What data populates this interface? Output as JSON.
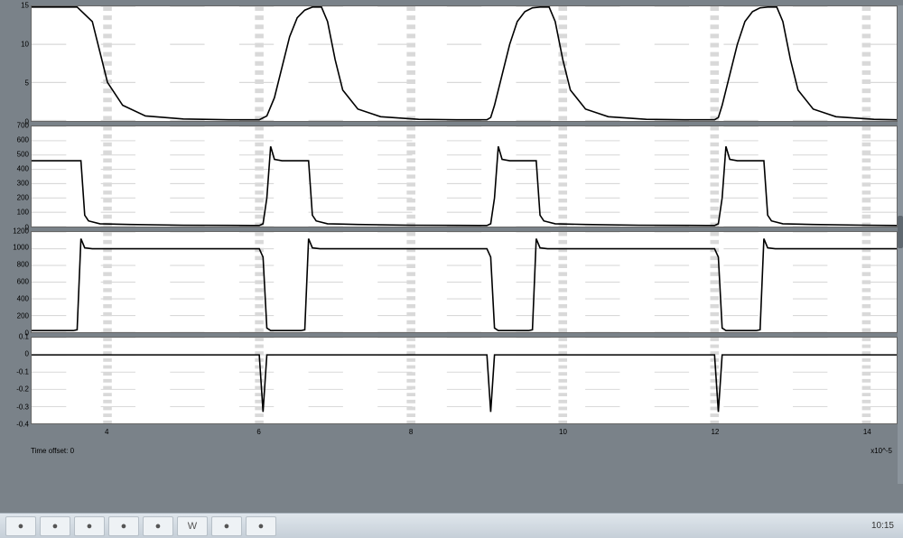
{
  "scope": {
    "background_color": "#7a8289",
    "plot_bg": "#ffffff",
    "grid_color": "#d9d9d9",
    "trace_color": "#000000",
    "trace_width": 1.6,
    "xlim": [
      3,
      14.4
    ],
    "xtick_positions": [
      4,
      6,
      8,
      10,
      12,
      14
    ],
    "xtick_labels": [
      "4",
      "6",
      "8",
      "10",
      "12",
      "14"
    ],
    "x_exponent_label": "x10^-5",
    "time_offset_label": "Time offset: 0",
    "panels": [
      {
        "name": "panel-1",
        "ylim": [
          0,
          15
        ],
        "yticks": [
          {
            "v": 0,
            "l": "0"
          },
          {
            "v": 5,
            "l": "5"
          },
          {
            "v": 10,
            "l": "10"
          },
          {
            "v": 15,
            "l": "15"
          }
        ],
        "heightFrac": 0.25,
        "points": [
          [
            3.0,
            14.9
          ],
          [
            3.6,
            14.9
          ],
          [
            3.8,
            13.0
          ],
          [
            3.9,
            9.0
          ],
          [
            4.0,
            5.0
          ],
          [
            4.2,
            2.0
          ],
          [
            4.5,
            0.6
          ],
          [
            5.0,
            0.2
          ],
          [
            5.6,
            0.1
          ],
          [
            5.9,
            0.1
          ],
          [
            6.0,
            0.1
          ],
          [
            6.1,
            0.6
          ],
          [
            6.2,
            3.0
          ],
          [
            6.3,
            7.0
          ],
          [
            6.4,
            11.0
          ],
          [
            6.5,
            13.5
          ],
          [
            6.6,
            14.5
          ],
          [
            6.7,
            14.9
          ],
          [
            6.8,
            14.9
          ],
          [
            6.82,
            14.9
          ],
          [
            6.9,
            13.0
          ],
          [
            7.0,
            8.0
          ],
          [
            7.1,
            4.0
          ],
          [
            7.3,
            1.5
          ],
          [
            7.6,
            0.5
          ],
          [
            8.1,
            0.15
          ],
          [
            8.6,
            0.1
          ],
          [
            8.9,
            0.1
          ],
          [
            9.0,
            0.1
          ],
          [
            9.05,
            0.4
          ],
          [
            9.1,
            2.0
          ],
          [
            9.2,
            6.0
          ],
          [
            9.3,
            10.0
          ],
          [
            9.4,
            13.0
          ],
          [
            9.5,
            14.3
          ],
          [
            9.6,
            14.8
          ],
          [
            9.7,
            14.9
          ],
          [
            9.8,
            14.9
          ],
          [
            9.82,
            14.9
          ],
          [
            9.9,
            13.0
          ],
          [
            10.0,
            8.0
          ],
          [
            10.1,
            4.0
          ],
          [
            10.3,
            1.5
          ],
          [
            10.6,
            0.5
          ],
          [
            11.1,
            0.15
          ],
          [
            11.6,
            0.1
          ],
          [
            11.9,
            0.1
          ],
          [
            12.0,
            0.1
          ],
          [
            12.05,
            0.4
          ],
          [
            12.1,
            2.0
          ],
          [
            12.2,
            6.0
          ],
          [
            12.3,
            10.0
          ],
          [
            12.4,
            13.0
          ],
          [
            12.5,
            14.3
          ],
          [
            12.6,
            14.8
          ],
          [
            12.7,
            14.9
          ],
          [
            12.8,
            14.9
          ],
          [
            12.82,
            14.9
          ],
          [
            12.9,
            13.0
          ],
          [
            13.0,
            8.0
          ],
          [
            13.1,
            4.0
          ],
          [
            13.3,
            1.5
          ],
          [
            13.6,
            0.5
          ],
          [
            14.1,
            0.15
          ],
          [
            14.4,
            0.1
          ]
        ]
      },
      {
        "name": "panel-2",
        "ylim": [
          0,
          700
        ],
        "yticks": [
          {
            "v": 0,
            "l": "0"
          },
          {
            "v": 100,
            "l": "100"
          },
          {
            "v": 200,
            "l": "200"
          },
          {
            "v": 300,
            "l": "300"
          },
          {
            "v": 400,
            "l": "400"
          },
          {
            "v": 500,
            "l": "500"
          },
          {
            "v": 600,
            "l": "600"
          },
          {
            "v": 700,
            "l": "700"
          }
        ],
        "heightFrac": 0.22,
        "points": [
          [
            3.0,
            460
          ],
          [
            3.6,
            460
          ],
          [
            3.65,
            460
          ],
          [
            3.7,
            80
          ],
          [
            3.75,
            40
          ],
          [
            3.9,
            20
          ],
          [
            4.3,
            15
          ],
          [
            5.0,
            10
          ],
          [
            5.9,
            8
          ],
          [
            6.0,
            8
          ],
          [
            6.05,
            20
          ],
          [
            6.1,
            200
          ],
          [
            6.15,
            560
          ],
          [
            6.2,
            470
          ],
          [
            6.3,
            460
          ],
          [
            6.6,
            460
          ],
          [
            6.65,
            460
          ],
          [
            6.7,
            80
          ],
          [
            6.75,
            40
          ],
          [
            6.9,
            20
          ],
          [
            7.3,
            15
          ],
          [
            8.0,
            10
          ],
          [
            8.9,
            8
          ],
          [
            9.0,
            8
          ],
          [
            9.05,
            20
          ],
          [
            9.1,
            200
          ],
          [
            9.15,
            560
          ],
          [
            9.2,
            470
          ],
          [
            9.3,
            460
          ],
          [
            9.6,
            460
          ],
          [
            9.65,
            460
          ],
          [
            9.7,
            80
          ],
          [
            9.75,
            40
          ],
          [
            9.9,
            20
          ],
          [
            10.3,
            15
          ],
          [
            11.0,
            10
          ],
          [
            11.9,
            8
          ],
          [
            12.0,
            8
          ],
          [
            12.05,
            20
          ],
          [
            12.1,
            200
          ],
          [
            12.15,
            560
          ],
          [
            12.2,
            470
          ],
          [
            12.3,
            460
          ],
          [
            12.6,
            460
          ],
          [
            12.65,
            460
          ],
          [
            12.7,
            80
          ],
          [
            12.75,
            40
          ],
          [
            12.9,
            20
          ],
          [
            13.3,
            15
          ],
          [
            14.0,
            10
          ],
          [
            14.4,
            8
          ]
        ]
      },
      {
        "name": "panel-3",
        "ylim": [
          0,
          1200
        ],
        "yticks": [
          {
            "v": 0,
            "l": "0"
          },
          {
            "v": 200,
            "l": "200"
          },
          {
            "v": 400,
            "l": "400"
          },
          {
            "v": 600,
            "l": "600"
          },
          {
            "v": 800,
            "l": "800"
          },
          {
            "v": 1000,
            "l": "1000"
          },
          {
            "v": 1200,
            "l": "1200"
          }
        ],
        "heightFrac": 0.22,
        "points": [
          [
            3.0,
            20
          ],
          [
            3.55,
            20
          ],
          [
            3.6,
            30
          ],
          [
            3.65,
            1120
          ],
          [
            3.7,
            1010
          ],
          [
            3.8,
            1000
          ],
          [
            4.5,
            1000
          ],
          [
            5.5,
            1000
          ],
          [
            5.9,
            1000
          ],
          [
            6.0,
            1000
          ],
          [
            6.05,
            900
          ],
          [
            6.1,
            50
          ],
          [
            6.15,
            20
          ],
          [
            6.3,
            20
          ],
          [
            6.55,
            20
          ],
          [
            6.6,
            30
          ],
          [
            6.65,
            1120
          ],
          [
            6.7,
            1010
          ],
          [
            6.8,
            1000
          ],
          [
            7.5,
            1000
          ],
          [
            8.5,
            1000
          ],
          [
            8.9,
            1000
          ],
          [
            9.0,
            1000
          ],
          [
            9.05,
            900
          ],
          [
            9.1,
            50
          ],
          [
            9.15,
            20
          ],
          [
            9.3,
            20
          ],
          [
            9.55,
            20
          ],
          [
            9.6,
            30
          ],
          [
            9.65,
            1120
          ],
          [
            9.7,
            1010
          ],
          [
            9.8,
            1000
          ],
          [
            10.5,
            1000
          ],
          [
            11.5,
            1000
          ],
          [
            11.9,
            1000
          ],
          [
            12.0,
            1000
          ],
          [
            12.05,
            900
          ],
          [
            12.1,
            50
          ],
          [
            12.15,
            20
          ],
          [
            12.3,
            20
          ],
          [
            12.55,
            20
          ],
          [
            12.6,
            30
          ],
          [
            12.65,
            1120
          ],
          [
            12.7,
            1010
          ],
          [
            12.8,
            1000
          ],
          [
            13.5,
            1000
          ],
          [
            14.4,
            1000
          ]
        ]
      },
      {
        "name": "panel-4",
        "ylim": [
          -0.4,
          0.1
        ],
        "yticks": [
          {
            "v": -0.4,
            "l": "-0.4"
          },
          {
            "v": -0.3,
            "l": "-0.3"
          },
          {
            "v": -0.2,
            "l": "-0.2"
          },
          {
            "v": -0.1,
            "l": "-0.1"
          },
          {
            "v": 0,
            "l": "0"
          },
          {
            "v": 0.1,
            "l": "0.1"
          }
        ],
        "heightFrac": 0.19,
        "points": [
          [
            3.0,
            0
          ],
          [
            5.95,
            0
          ],
          [
            6.0,
            0
          ],
          [
            6.05,
            -0.33
          ],
          [
            6.1,
            0
          ],
          [
            6.2,
            0
          ],
          [
            8.95,
            0
          ],
          [
            9.0,
            0
          ],
          [
            9.05,
            -0.33
          ],
          [
            9.1,
            0
          ],
          [
            9.2,
            0
          ],
          [
            11.95,
            0
          ],
          [
            12.0,
            0
          ],
          [
            12.05,
            -0.33
          ],
          [
            12.1,
            0
          ],
          [
            12.2,
            0
          ],
          [
            14.4,
            0
          ]
        ]
      }
    ]
  },
  "taskbar": {
    "buttons": [
      "●",
      "●",
      "●",
      "●",
      "●",
      "W",
      "●",
      "●"
    ],
    "clock": "10:15"
  }
}
